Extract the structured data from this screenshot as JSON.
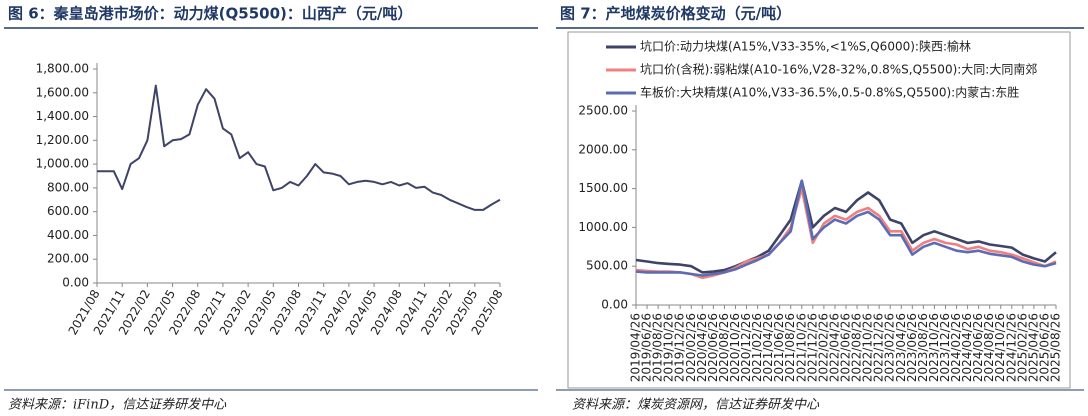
{
  "chart_data": [
    {
      "type": "line",
      "title": "图 6：秦皇岛港市场价：动力煤(Q5500)：山西产（元/吨）",
      "source": "资料来源：iFinD，信达证券研发中心",
      "categories": [
        "2021/08",
        null,
        null,
        "2021/11",
        null,
        null,
        "2022/02",
        null,
        null,
        "2022/05",
        null,
        null,
        "2022/08",
        null,
        null,
        "2022/11",
        null,
        null,
        "2023/02",
        null,
        null,
        "2023/05",
        null,
        null,
        "2023/08",
        null,
        null,
        "2023/11",
        null,
        null,
        "2024/02",
        null,
        null,
        "2024/05",
        null,
        null,
        "2024/08",
        null,
        null,
        "2024/11",
        null,
        null,
        "2025/02",
        null,
        null,
        "2025/05",
        null,
        null,
        "2025/08"
      ],
      "values": [
        940,
        940,
        940,
        790,
        1000,
        1050,
        1200,
        1660,
        1150,
        1200,
        1210,
        1250,
        1500,
        1630,
        1550,
        1300,
        1250,
        1050,
        1100,
        1000,
        980,
        780,
        800,
        850,
        820,
        900,
        1000,
        930,
        920,
        900,
        830,
        850,
        860,
        850,
        830,
        850,
        820,
        840,
        800,
        810,
        760,
        740,
        700,
        670,
        640,
        615,
        615,
        660,
        700
      ],
      "color": "#3d4466",
      "ylim": [
        0,
        1800
      ],
      "yticks": [
        {
          "value": 0,
          "label": "0.00"
        },
        {
          "value": 200,
          "label": "200.00"
        },
        {
          "value": 400,
          "label": "400.00"
        },
        {
          "value": 600,
          "label": "600.00"
        },
        {
          "value": 800,
          "label": "800.00"
        },
        {
          "value": 1000,
          "label": "1,000.00"
        },
        {
          "value": 1200,
          "label": "1,200.00"
        },
        {
          "value": 1400,
          "label": "1,400.00"
        },
        {
          "value": 1600,
          "label": "1,600.00"
        },
        {
          "value": 1800,
          "label": "1,800.00"
        }
      ]
    },
    {
      "type": "line",
      "title": "图 7：产地煤炭价格变动（元/吨）",
      "source": "资料来源：煤炭资源网，信达证券研发中心",
      "categories": [
        "2019/04/26",
        "2019/06/26",
        "2019/08/26",
        "2019/10/26",
        "2019/12/26",
        "2020/02/26",
        "2020/04/26",
        "2020/06/26",
        "2020/08/26",
        "2020/10/26",
        "2020/12/26",
        "2021/02/26",
        "2021/04/26",
        "2021/06/26",
        "2021/08/26",
        "2021/10/26",
        "2021/12/26",
        "2022/02/26",
        "2022/04/26",
        "2022/06/26",
        "2022/08/26",
        "2022/10/26",
        "2022/12/26",
        "2023/02/26",
        "2023/04/26",
        "2023/06/26",
        "2023/08/26",
        "2023/10/26",
        "2023/12/26",
        "2024/02/26",
        "2024/04/26",
        "2024/06/26",
        "2024/08/26",
        "2024/10/26",
        "2024/12/26",
        "2025/02/26",
        "2025/04/26",
        "2025/06/26",
        "2025/08/26"
      ],
      "series": [
        {
          "name": "坑口价:动力块煤(A15%,V33-35%,<1%S,Q6000):陕西:榆林",
          "color": "#3d4466",
          "values": [
            580,
            560,
            540,
            530,
            520,
            500,
            420,
            430,
            450,
            500,
            560,
            620,
            700,
            900,
            1100,
            1600,
            1000,
            1150,
            1250,
            1200,
            1350,
            1450,
            1350,
            1100,
            1050,
            800,
            900,
            950,
            900,
            850,
            800,
            820,
            780,
            760,
            740,
            650,
            600,
            560,
            680
          ]
        },
        {
          "name": "坑口价(含税):弱粘煤(A10-16%,V28-32%,0.8%S,Q5500):大同:大同南郊",
          "color": "#f08080",
          "values": [
            450,
            440,
            430,
            430,
            420,
            400,
            350,
            380,
            420,
            480,
            560,
            600,
            650,
            800,
            1000,
            1500,
            800,
            1050,
            1150,
            1100,
            1200,
            1250,
            1150,
            950,
            950,
            700,
            800,
            850,
            800,
            780,
            720,
            750,
            700,
            680,
            650,
            600,
            550,
            500,
            560
          ]
        },
        {
          "name": "车板价:大块精煤(A10%,V33-36.5%,0.5-0.8%S,Q5500):内蒙古:东胜",
          "color": "#5b6cb4",
          "values": [
            430,
            420,
            420,
            420,
            420,
            400,
            380,
            400,
            420,
            460,
            520,
            580,
            650,
            800,
            950,
            1600,
            850,
            1000,
            1100,
            1050,
            1150,
            1200,
            1100,
            900,
            900,
            650,
            750,
            800,
            750,
            700,
            680,
            700,
            660,
            640,
            620,
            560,
            520,
            500,
            540
          ]
        }
      ],
      "ylim": [
        0,
        2500
      ],
      "yticks": [
        {
          "value": 0,
          "label": "0.00"
        },
        {
          "value": 500,
          "label": "500.00"
        },
        {
          "value": 1000,
          "label": "1000.00"
        },
        {
          "value": 1500,
          "label": "1500.00"
        },
        {
          "value": 2000,
          "label": "2000.00"
        },
        {
          "value": 2500,
          "label": "2500.00"
        }
      ]
    }
  ]
}
